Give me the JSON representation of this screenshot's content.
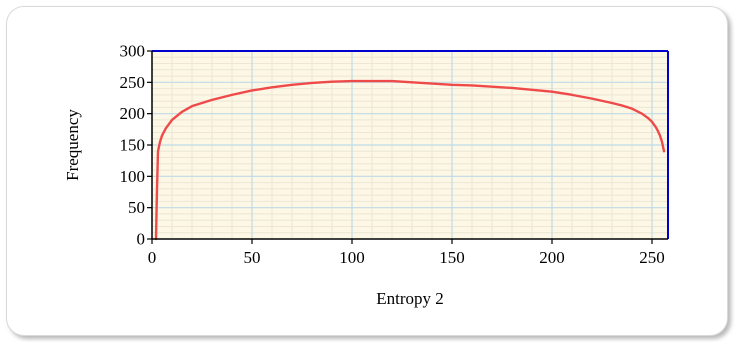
{
  "chart_data": {
    "type": "line",
    "title": "",
    "xlabel": "Entropy 2",
    "ylabel": "Frequency",
    "xlim": [
      0,
      258
    ],
    "ylim": [
      0,
      300
    ],
    "x_ticks": [
      0,
      50,
      100,
      150,
      200,
      250
    ],
    "y_ticks": [
      0,
      50,
      100,
      150,
      200,
      250,
      300
    ],
    "grid": true,
    "colors": {
      "plot_background": "#fdf7e6",
      "series": "#ef4a4a",
      "frame": "#0000cc",
      "grid_major": "#bfdbe6",
      "grid_minor": "#ece6d3"
    },
    "series": [
      {
        "x": [
          2,
          2.5,
          3,
          4,
          5,
          7,
          10,
          15,
          20,
          30,
          40,
          50,
          60,
          70,
          80,
          90,
          100,
          110,
          120,
          130,
          140,
          150,
          160,
          170,
          180,
          190,
          200,
          210,
          220,
          230,
          235,
          240,
          245,
          248,
          250,
          252,
          253,
          254,
          255,
          256
        ],
        "y": [
          0,
          80,
          140,
          155,
          165,
          177,
          190,
          203,
          212,
          222,
          230,
          237,
          242,
          246,
          249,
          251,
          252,
          252,
          252,
          250,
          248,
          246,
          245,
          243,
          241,
          238,
          235,
          230,
          224,
          217,
          213,
          208,
          200,
          193,
          187,
          178,
          172,
          165,
          155,
          140
        ]
      }
    ]
  }
}
